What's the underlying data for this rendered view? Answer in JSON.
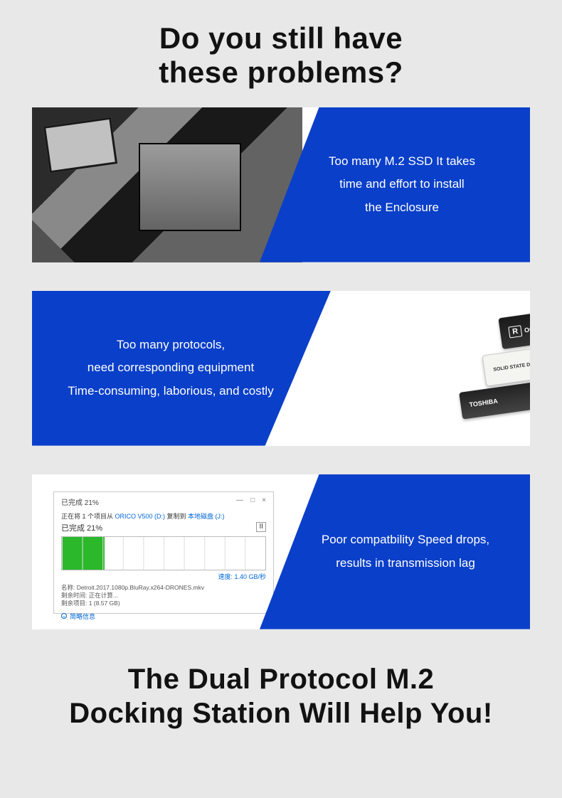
{
  "heading_top_line1": "Do you still have",
  "heading_top_line2": "these problems?",
  "accent_blue": "#0a3fc9",
  "background_gray": "#e8e8e8",
  "card1": {
    "text_line1": "Too many M.2 SSD It takes",
    "text_line2": "time and effort to install",
    "text_line3": "the Enclosure"
  },
  "card2": {
    "text_line1": "Too many protocols,",
    "text_line2": "need corresponding equipment",
    "text_line3": "Time-consuming, laborious, and costly",
    "ssd_label1": "OCZ",
    "ssd_label2": "SOLID STATE DRIVE",
    "ssd_label3": "TOSHIBA"
  },
  "card3": {
    "text_line1": "Poor compatbility Speed drops,",
    "text_line2": "results in transmission lag",
    "dialog": {
      "title": "已完成 21%",
      "copy_line_prefix": "正在将 1 个项目从 ",
      "copy_src": "ORICO V500 (D:)",
      "copy_mid": " 复制到 ",
      "copy_dst": "本地磁盘 (J:)",
      "percent_label": "已完成 21%",
      "pause_glyph": "II",
      "progress_percent": 21,
      "progress_fill_color": "#2bb82b",
      "speed": "速度: 1.40 GB/秒",
      "filename": "名称: Detroit.2017.1080p.BluRay.x264-DRONES.mkv",
      "time_remaining": "剩余时间: 正在计算...",
      "items_remaining": "剩余项目: 1 (8.57 GB)",
      "details": "简略信息",
      "minimize": "—",
      "maximize": "□",
      "close": "×"
    }
  },
  "heading_bottom_line1": "The Dual Protocol M.2",
  "heading_bottom_line2": "Docking Station Will Help You!"
}
